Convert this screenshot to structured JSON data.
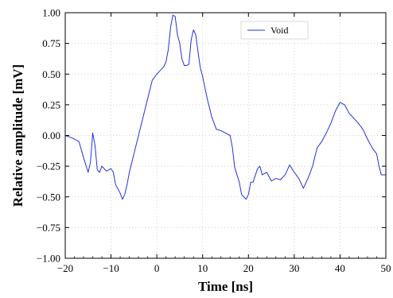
{
  "chart_data": {
    "type": "line",
    "xlabel": "Time [ns]",
    "ylabel": "Relative amplitude [mV]",
    "xlim": [
      -20,
      50
    ],
    "ylim": [
      -1.0,
      1.0
    ],
    "x_ticks": [
      -20,
      -10,
      0,
      10,
      20,
      30,
      40,
      50
    ],
    "x_tick_labels": [
      "−20",
      "−10",
      "0",
      "10",
      "20",
      "30",
      "40",
      "50"
    ],
    "y_ticks": [
      -1.0,
      -0.75,
      -0.5,
      -0.25,
      0.0,
      0.25,
      0.5,
      0.75,
      1.0
    ],
    "y_tick_labels": [
      "−1.00",
      "−0.75",
      "−0.50",
      "−0.25",
      "0.00",
      "0.25",
      "0.50",
      "0.75",
      "1.00"
    ],
    "grid": true,
    "legend_position": "top-right",
    "series": [
      {
        "name": "Void",
        "color": "#2233dd",
        "x": [
          -20,
          -18.5,
          -17,
          -16,
          -15,
          -14.5,
          -14,
          -13.5,
          -13,
          -12.5,
          -12,
          -11,
          -10,
          -9.5,
          -9,
          -8,
          -7.5,
          -7,
          -6.5,
          -6,
          -5,
          -4,
          -3,
          -2,
          -1,
          0,
          0.5,
          1,
          1.5,
          2,
          2.5,
          3,
          3.5,
          4,
          4.5,
          5,
          5.5,
          6,
          6.5,
          7,
          7.5,
          8,
          8.5,
          9,
          9.5,
          10,
          11,
          12,
          13,
          14,
          15,
          16,
          16.5,
          17,
          18,
          18.5,
          19,
          19.5,
          20,
          20.5,
          21,
          22,
          22.5,
          23,
          24,
          25,
          26,
          27,
          28,
          29,
          30,
          31,
          32,
          33,
          34,
          35,
          36,
          37,
          38,
          39,
          40,
          41,
          42,
          43,
          44,
          45,
          46,
          47,
          48,
          48.5,
          49,
          50
        ],
        "values": [
          0.0,
          -0.02,
          -0.05,
          -0.18,
          -0.3,
          -0.22,
          0.02,
          -0.08,
          -0.28,
          -0.3,
          -0.25,
          -0.29,
          -0.27,
          -0.3,
          -0.4,
          -0.47,
          -0.52,
          -0.48,
          -0.4,
          -0.3,
          -0.15,
          0.0,
          0.15,
          0.3,
          0.45,
          0.5,
          0.52,
          0.54,
          0.56,
          0.6,
          0.7,
          0.88,
          0.98,
          0.97,
          0.82,
          0.75,
          0.62,
          0.57,
          0.57,
          0.58,
          0.78,
          0.86,
          0.82,
          0.68,
          0.55,
          0.48,
          0.3,
          0.15,
          0.05,
          0.04,
          0.02,
          0.0,
          -0.1,
          -0.26,
          -0.38,
          -0.48,
          -0.5,
          -0.52,
          -0.48,
          -0.38,
          -0.38,
          -0.27,
          -0.25,
          -0.32,
          -0.3,
          -0.37,
          -0.35,
          -0.36,
          -0.32,
          -0.24,
          -0.3,
          -0.35,
          -0.43,
          -0.35,
          -0.25,
          -0.1,
          -0.05,
          0.02,
          0.1,
          0.2,
          0.27,
          0.25,
          0.18,
          0.14,
          0.1,
          0.05,
          -0.03,
          -0.1,
          -0.15,
          -0.25,
          -0.32,
          -0.32
        ]
      }
    ]
  }
}
